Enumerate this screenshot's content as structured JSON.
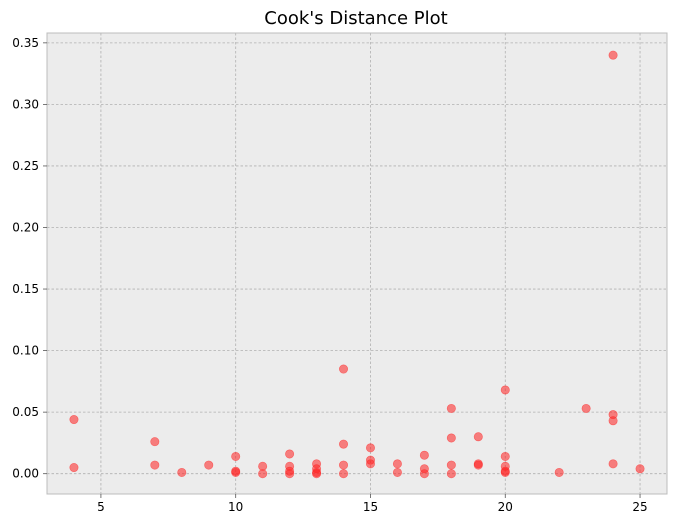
{
  "chart_data": {
    "type": "scatter",
    "title": "Cook's Distance Plot",
    "xlabel": "",
    "ylabel": "",
    "xlim": [
      3,
      26
    ],
    "ylim": [
      -0.0165,
      0.358
    ],
    "x_ticks": [
      5,
      10,
      15,
      20,
      25
    ],
    "x_tick_labels": [
      "5",
      "10",
      "15",
      "20",
      "25"
    ],
    "y_ticks": [
      0.0,
      0.05,
      0.1,
      0.15,
      0.2,
      0.25,
      0.3,
      0.35
    ],
    "y_tick_labels": [
      "0.00",
      "0.05",
      "0.10",
      "0.15",
      "0.20",
      "0.25",
      "0.30",
      "0.35"
    ],
    "grid": true,
    "point_color": "#ff2020",
    "background_color": "#ececec",
    "series": [
      {
        "points": [
          [
            4,
            0.044
          ],
          [
            4,
            0.005
          ],
          [
            7,
            0.026
          ],
          [
            7,
            0.007
          ],
          [
            8,
            0.001
          ],
          [
            9,
            0.007
          ],
          [
            10,
            0.014
          ],
          [
            10,
            0.002
          ],
          [
            10,
            0.001
          ],
          [
            11,
            0.006
          ],
          [
            11,
            0.0
          ],
          [
            12,
            0.016
          ],
          [
            12,
            0.006
          ],
          [
            12,
            0.002
          ],
          [
            12,
            0.0
          ],
          [
            13,
            0.008
          ],
          [
            13,
            0.004
          ],
          [
            13,
            0.001
          ],
          [
            13,
            0.0
          ],
          [
            14,
            0.085
          ],
          [
            14,
            0.024
          ],
          [
            14,
            0.007
          ],
          [
            14,
            0.0
          ],
          [
            15,
            0.021
          ],
          [
            15,
            0.011
          ],
          [
            15,
            0.008
          ],
          [
            16,
            0.008
          ],
          [
            16,
            0.001
          ],
          [
            17,
            0.015
          ],
          [
            17,
            0.004
          ],
          [
            17,
            0.0
          ],
          [
            18,
            0.053
          ],
          [
            18,
            0.029
          ],
          [
            18,
            0.007
          ],
          [
            18,
            0.0
          ],
          [
            19,
            0.03
          ],
          [
            19,
            0.008
          ],
          [
            19,
            0.007
          ],
          [
            20,
            0.068
          ],
          [
            20,
            0.014
          ],
          [
            20,
            0.006
          ],
          [
            20,
            0.002
          ],
          [
            20,
            0.001
          ],
          [
            22,
            0.001
          ],
          [
            23,
            0.053
          ],
          [
            24,
            0.34
          ],
          [
            24,
            0.048
          ],
          [
            24,
            0.043
          ],
          [
            24,
            0.008
          ],
          [
            25,
            0.004
          ]
        ]
      }
    ]
  }
}
